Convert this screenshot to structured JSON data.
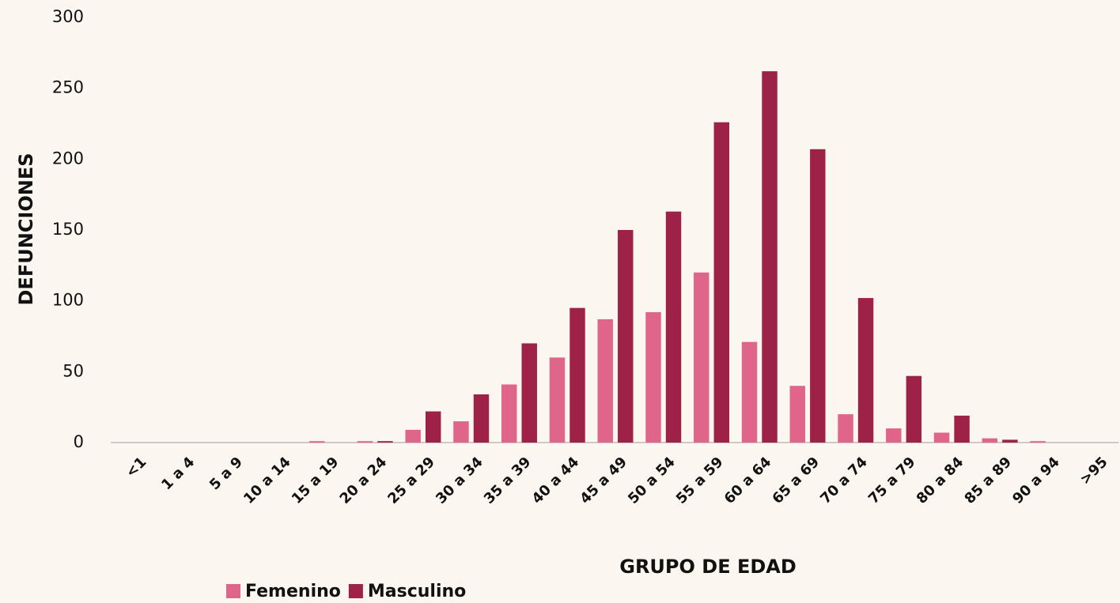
{
  "chart_data": {
    "type": "bar",
    "x_label": "GRUPO DE EDAD",
    "y_label": "DEFUNCIONES",
    "categories": [
      "<1",
      "1 a 4",
      "5 a 9",
      "10 a 14",
      "15 a 19",
      "20 a 24",
      "25 a 29",
      "30 a 34",
      "35 a 39",
      "40 a 44",
      "45 a 49",
      "50 a 54",
      "55 a 59",
      "60 a 64",
      "65 a 69",
      "70 a 74",
      "75 a 79",
      "80 a 84",
      "85 a 89",
      "90 a 94",
      ">95"
    ],
    "series": [
      {
        "name": "Femenino",
        "color": "#e0658a",
        "values": [
          0,
          0,
          0,
          0,
          1,
          1,
          9,
          15,
          41,
          60,
          87,
          92,
          120,
          71,
          40,
          20,
          10,
          7,
          3,
          1,
          0
        ]
      },
      {
        "name": "Masculino",
        "color": "#9e2148",
        "values": [
          0,
          0,
          0,
          0,
          0,
          1,
          22,
          34,
          70,
          95,
          150,
          163,
          226,
          262,
          207,
          102,
          47,
          19,
          2,
          0,
          0
        ]
      }
    ],
    "ylim": [
      0,
      300
    ],
    "yticks": [
      0,
      50,
      100,
      150,
      200,
      250,
      300
    ],
    "grid": false,
    "legend": "bottom"
  }
}
